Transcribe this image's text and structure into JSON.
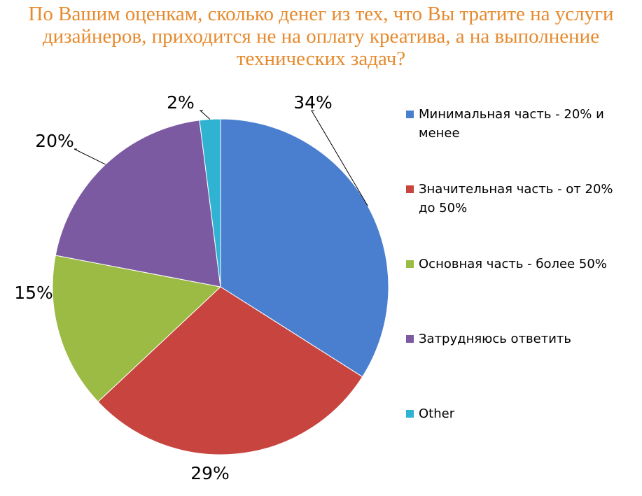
{
  "chart_data": {
    "type": "pie",
    "title": "По Вашим оценкам, сколько денег из тех, что Вы тратите на услуги дизайнеров, приходится не на оплату креатива, а на выполнение технических задач?",
    "categories": [
      "Минимальная часть - 20% и менее",
      "Значительная часть - от 20% до 50%",
      "Основная часть - более 50%",
      "Затрудняюсь ответить",
      "Other"
    ],
    "values": [
      34,
      29,
      15,
      20,
      2
    ],
    "value_labels": [
      "34%",
      "29%",
      "15%",
      "20%",
      "2%"
    ],
    "colors": [
      "#4a7fcf",
      "#c8443f",
      "#9bbb45",
      "#7b5aa2",
      "#30b3d2"
    ],
    "legend": "right"
  }
}
